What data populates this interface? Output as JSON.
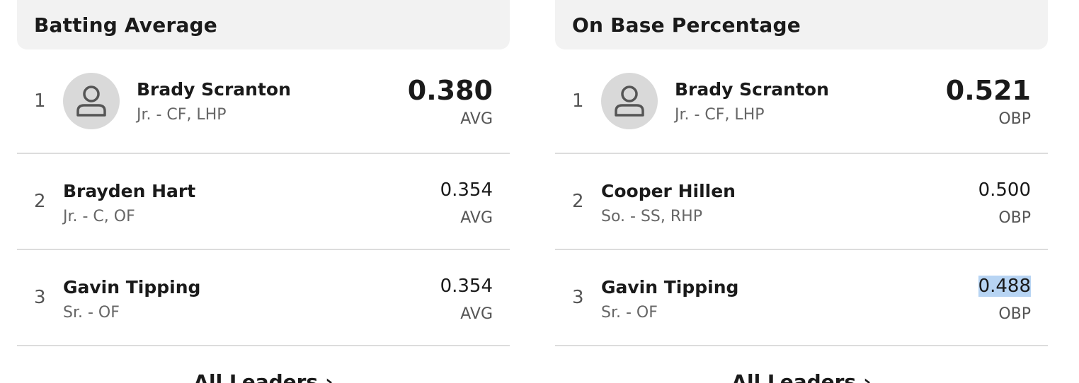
{
  "panels": [
    {
      "title": "Batting Average",
      "leaders": [
        {
          "rank": "1",
          "name": "Brady Scranton",
          "meta": "Jr. - CF, LHP",
          "value": "0.380",
          "unit": "AVG"
        },
        {
          "rank": "2",
          "name": "Brayden Hart",
          "meta": "Jr. - C, OF",
          "value": "0.354",
          "unit": "AVG"
        },
        {
          "rank": "3",
          "name": "Gavin Tipping",
          "meta": "Sr. - OF",
          "value": "0.354",
          "unit": "AVG"
        }
      ],
      "link_label": "All Leaders",
      "link_chevron": "›"
    },
    {
      "title": "On Base Percentage",
      "leaders": [
        {
          "rank": "1",
          "name": "Brady Scranton",
          "meta": "Jr. - CF, LHP",
          "value": "0.521",
          "unit": "OBP"
        },
        {
          "rank": "2",
          "name": "Cooper Hillen",
          "meta": "So. - SS, RHP",
          "value": "0.500",
          "unit": "OBP"
        },
        {
          "rank": "3",
          "name": "Gavin Tipping",
          "meta": "Sr. - OF",
          "value": "0.488",
          "unit": "OBP"
        }
      ],
      "link_label": "All Leaders",
      "link_chevron": "›"
    }
  ],
  "icons": {
    "avatar": "user-placeholder-icon"
  },
  "colors": {
    "header_bg": "#f2f2f2",
    "avatar_bg": "#d9d9d9",
    "selection": "#b7d4f3"
  }
}
